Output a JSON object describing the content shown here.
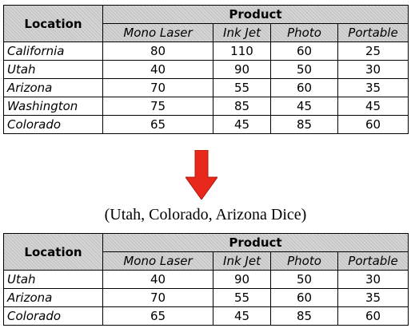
{
  "top_table": {
    "location_header": "Location",
    "product_header": "Product",
    "columns": [
      "Mono Laser",
      "Ink Jet",
      "Photo",
      "Portable"
    ],
    "rows": [
      {
        "location": "California",
        "values": [
          "80",
          "110",
          "60",
          "25"
        ]
      },
      {
        "location": "Utah",
        "values": [
          "40",
          "90",
          "50",
          "30"
        ]
      },
      {
        "location": "Arizona",
        "values": [
          "70",
          "55",
          "60",
          "35"
        ]
      },
      {
        "location": "Washington",
        "values": [
          "75",
          "85",
          "45",
          "45"
        ]
      },
      {
        "location": "Colorado",
        "values": [
          "65",
          "45",
          "85",
          "60"
        ]
      }
    ]
  },
  "arrow": {
    "icon": "down-arrow-icon",
    "color": "#e8281b"
  },
  "caption": "(Utah, Colorado, Arizona Dice)",
  "bottom_table": {
    "location_header": "Location",
    "product_header": "Product",
    "columns": [
      "Mono Laser",
      "Ink Jet",
      "Photo",
      "Portable"
    ],
    "rows": [
      {
        "location": "Utah",
        "values": [
          "40",
          "90",
          "50",
          "30"
        ]
      },
      {
        "location": "Arizona",
        "values": [
          "70",
          "55",
          "60",
          "35"
        ]
      },
      {
        "location": "Colorado",
        "values": [
          "65",
          "45",
          "85",
          "60"
        ]
      }
    ]
  }
}
